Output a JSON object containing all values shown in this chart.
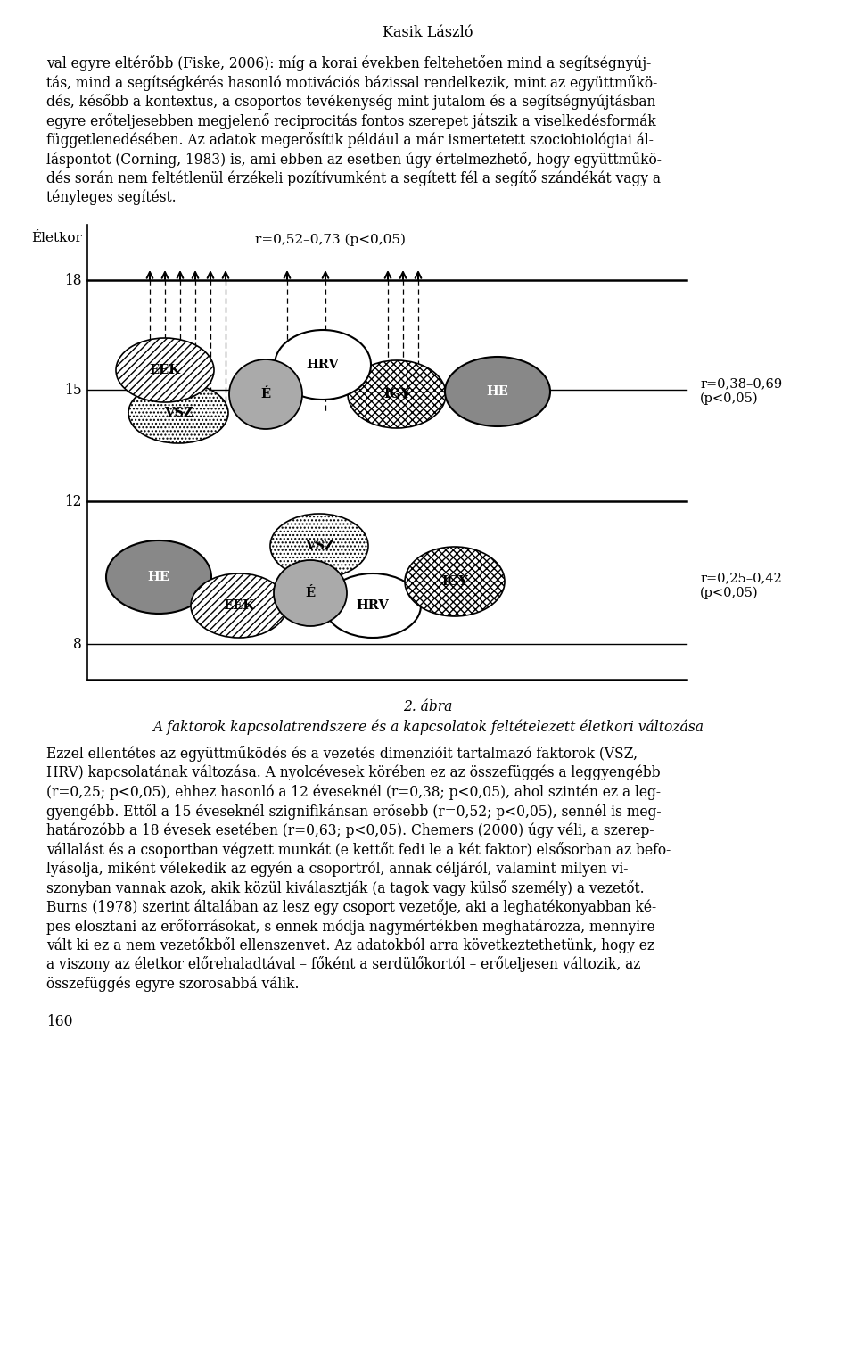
{
  "page_title": "Kasik László",
  "fig_caption_1": "2. ábra",
  "fig_caption_2": "A faktorok kapcsolatrendszere és a kapcsolatok feltételezett életkori változása",
  "page_number": "160",
  "ylabel": "Életkor",
  "arrow_label": "r=0,52–0,73 (p<0,05)",
  "r_top": "r=0,38–0,69\n(p<0,05)",
  "r_bottom": "r=0,25–0,42\n(p<0,05)",
  "para1_lines": [
    "val egyre eltérőbb (Fiske, 2006): míg a korai években feltehetően mind a segítségnyúj-",
    "tás, mind a segítségkérés hasonló motivációs bázissal rendelkezik, mint az együttműkö-",
    "dés, később a kontextus, a csoportos tevékenység mint jutalom és a segítségnyújtásban",
    "egyre erőteljesebben megjelenő reciprocitás fontos szerepet játszik a viselkedésformák",
    "függetlenedésében. Az adatok megerősítik például a már ismertetett szociobiológiai ál-",
    "láspontot (Corning, 1983) is, ami ebben az esetben úgy értelmezhető, hogy együttműkö-",
    "dés során nem feltétlenül érzékeli pozítívumként a segített fél a segítő szándékát vagy a",
    "tényleges segítést."
  ],
  "para2_lines": [
    "Ezzel ellentétes az együttműködés és a vezetés dimenzióit tartalmazó faktorok (VSZ,",
    "HRV) kapcsolatának változása. A nyolcévesek körében ez az összefüggés a leggyengébb",
    "(r=0,25; p<0,05), ehhez hasonló a 12 éveseknél (r=0,38; p<0,05), ahol szintén ez a leg-",
    "gyengébb. Ettől a 15 éveseknél szignifikánsan erősebb (r=0,52; p<0,05), sennél is meg-",
    "határozóbb a 18 évesek esetében (r=0,63; p<0,05). Chemers (2000) úgy véli, a szerep-",
    "vállalást és a csoportban végzett munkát (e kettőt fedi le a két faktor) elsősorban az befo-",
    "lyásolja, miként vélekedik az egyén a csoportról, annak céljáról, valamint milyen vi-",
    "szonyban vannak azok, akik közül kiválasztják (a tagok vagy külső személy) a vezetőt.",
    "Burns (1978) szerint általában az lesz egy csoport vezetője, aki a leghatékonyabban ké-",
    "pes elosztani az erőforrásokat, s ennek módja nagymértékben meghatározza, mennyire",
    "vált ki ez a nem vezetőkből ellenszenvet. Az adatokból arra következtethetünk, hogy ez",
    "a viszony az életkor előrehaladtával – főként a serdülőkortól – erőteljesen változik, az",
    "összefüggés egyre szorosabbá válik."
  ]
}
